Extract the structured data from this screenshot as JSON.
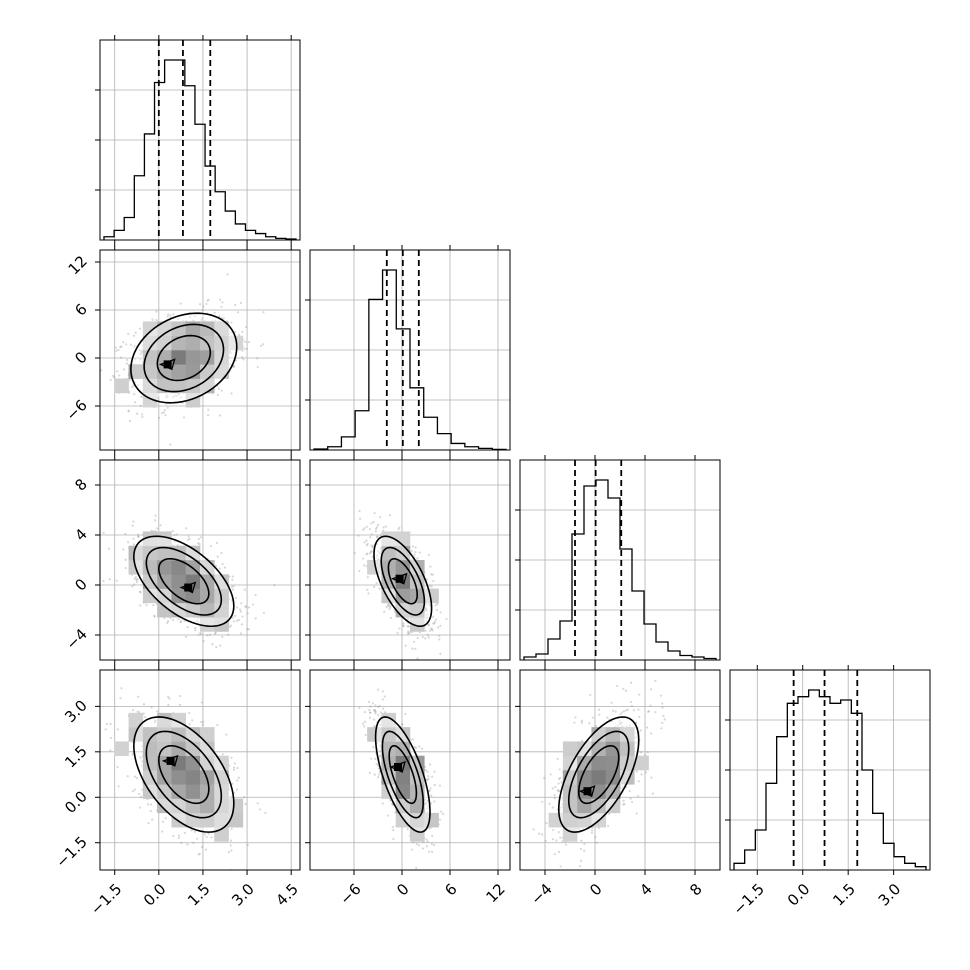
{
  "chart_data": {
    "type": "corner",
    "grid": true,
    "parameters": [
      {
        "range": [
          -2.0,
          4.8
        ],
        "ticks": [
          -1.5,
          0.0,
          1.5,
          3.0,
          4.5
        ],
        "tick_labels": [
          "−1.5",
          "0.0",
          "1.5",
          "3.0",
          "4.5"
        ],
        "quantiles": [
          0.0,
          0.82,
          1.75
        ]
      },
      {
        "range": [
          -11.5,
          13.5
        ],
        "ticks": [
          -6,
          0,
          6,
          12
        ],
        "tick_labels": [
          "−6",
          "0",
          "6",
          "12"
        ],
        "quantiles": [
          -1.9,
          0.1,
          2.1
        ]
      },
      {
        "range": [
          -6.0,
          10.0
        ],
        "ticks": [
          -4,
          0,
          4,
          8
        ],
        "tick_labels": [
          "−4",
          "0",
          "4",
          "8"
        ],
        "quantiles": [
          -1.6,
          0.05,
          2.1
        ]
      },
      {
        "range": [
          -2.4,
          4.2
        ],
        "ticks": [
          -1.5,
          0.0,
          1.5,
          3.0
        ],
        "tick_labels": [
          "−1.5",
          "0.0",
          "1.5",
          "3.0"
        ],
        "quantiles": [
          -0.3,
          0.72,
          1.8
        ]
      }
    ],
    "histograms": [
      {
        "param": 0,
        "counts": [
          1,
          3,
          7,
          20,
          33,
          49,
          56,
          56,
          48,
          36,
          23,
          15,
          9,
          5,
          3,
          2,
          1,
          0.5,
          0.3
        ]
      },
      {
        "param": 1,
        "counts": [
          0.3,
          1,
          4,
          12,
          46,
          55,
          37,
          19,
          10,
          5,
          2,
          1,
          0.5,
          0.2
        ]
      },
      {
        "param": 2,
        "counts": [
          1,
          2,
          7,
          13,
          42,
          58,
          60,
          54,
          37,
          23,
          12,
          6,
          3,
          1.5,
          1,
          0.5
        ]
      },
      {
        "param": 3,
        "counts": [
          2,
          6,
          12,
          26,
          40,
          50,
          52,
          54,
          52,
          50,
          51,
          47,
          30,
          17,
          8,
          4,
          2,
          1
        ]
      }
    ],
    "pairs": [
      {
        "x": 0,
        "y": 1,
        "mean": [
          0.85,
          0.0
        ],
        "sd": [
          0.9,
          2.8
        ],
        "rho": 0.25,
        "center": [
          0.3,
          -0.8
        ]
      },
      {
        "x": 0,
        "y": 2,
        "mean": [
          0.85,
          0.3
        ],
        "sd": [
          0.85,
          1.8
        ],
        "rho": -0.55,
        "center": [
          1.0,
          -0.2
        ]
      },
      {
        "x": 1,
        "y": 2,
        "mean": [
          0.1,
          0.3
        ],
        "sd": [
          1.8,
          1.8
        ],
        "rho": -0.6,
        "center": [
          -0.3,
          0.5
        ]
      },
      {
        "x": 0,
        "y": 3,
        "mean": [
          0.85,
          0.75
        ],
        "sd": [
          0.85,
          0.95
        ],
        "rho": -0.5,
        "center": [
          0.4,
          1.2
        ]
      },
      {
        "x": 1,
        "y": 3,
        "mean": [
          0.1,
          0.75
        ],
        "sd": [
          1.7,
          0.95
        ],
        "rho": -0.65,
        "center": [
          -0.5,
          1.0
        ]
      },
      {
        "x": 2,
        "y": 3,
        "mean": [
          0.3,
          0.75
        ],
        "sd": [
          1.6,
          0.95
        ],
        "rho": 0.6,
        "center": [
          -0.6,
          0.2
        ]
      }
    ]
  }
}
